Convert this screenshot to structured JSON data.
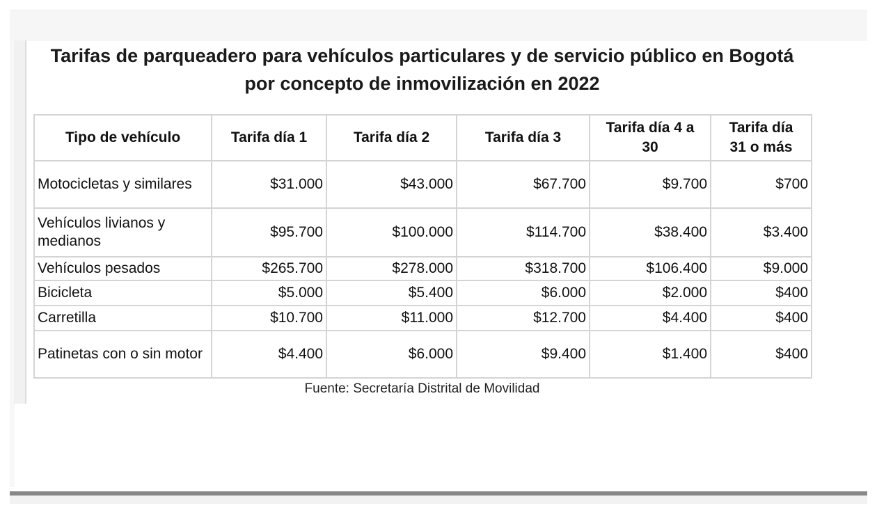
{
  "title": "Tarifas de parqueadero para vehículos particulares y de servicio público en Bogotá por concepto de inmovilización en 2022",
  "table": {
    "headers": [
      "Tipo de vehículo",
      "Tarifa día 1",
      "Tarifa día 2",
      "Tarifa día 3",
      "Tarifa día 4 a 30",
      "Tarifa día 31 o más"
    ],
    "rows": [
      [
        "Motocicletas y similares",
        "$31.000",
        "$43.000",
        "$67.700",
        "$9.700",
        "$700"
      ],
      [
        "Vehículos livianos y medianos",
        "$95.700",
        "$100.000",
        "$114.700",
        "$38.400",
        "$3.400"
      ],
      [
        "Vehículos pesados",
        "$265.700",
        "$278.000",
        "$318.700",
        "$106.400",
        "$9.000"
      ],
      [
        "Bicicleta",
        "$5.000",
        "$5.400",
        "$6.000",
        "$2.000",
        "$400"
      ],
      [
        "Carretilla",
        "$10.700",
        "$11.000",
        "$12.700",
        "$4.400",
        "$400"
      ],
      [
        "Patinetas con o sin motor",
        "$4.400",
        "$6.000",
        "$9.400",
        "$1.400",
        "$400"
      ]
    ]
  },
  "source": "Fuente: Secretaría Distrital de Movilidad"
}
